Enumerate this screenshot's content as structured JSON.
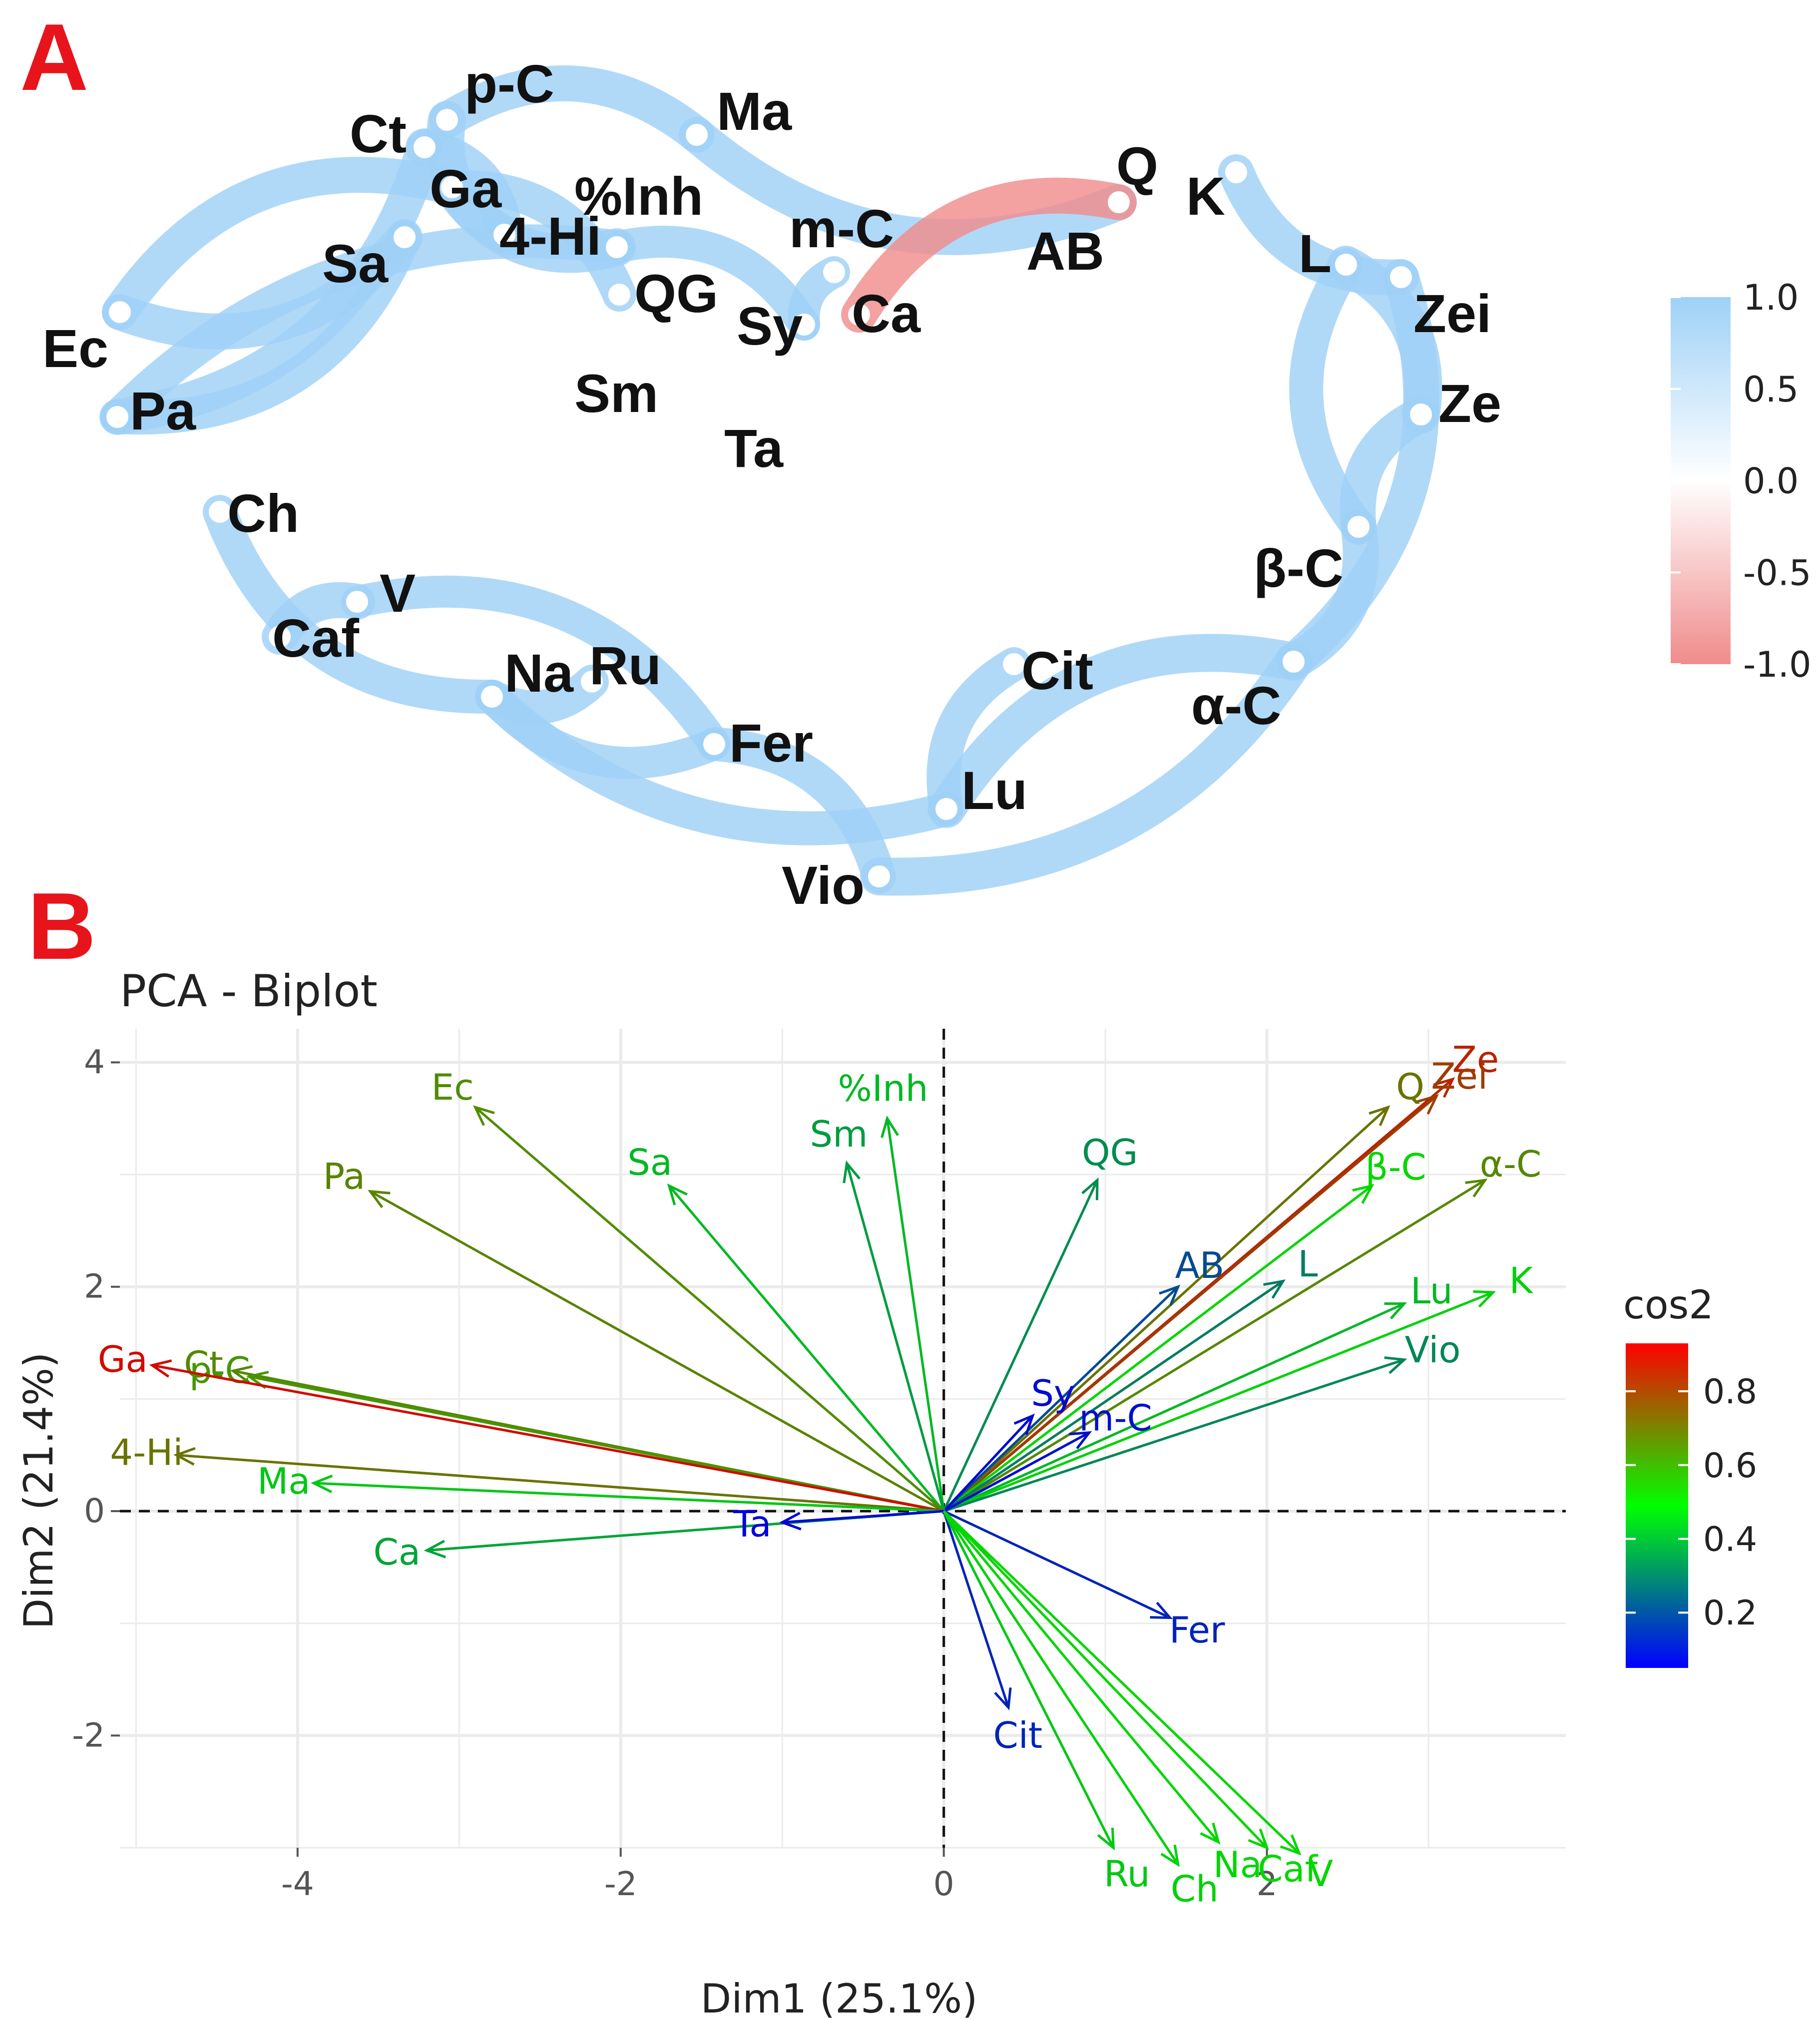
{
  "panels": {
    "a_letter": "A",
    "b_letter": "B"
  },
  "network": {
    "nodes": [
      {
        "id": "pC",
        "label": "p-C"
      },
      {
        "id": "Ct",
        "label": "Ct"
      },
      {
        "id": "Ga",
        "label": "Ga"
      },
      {
        "id": "Ma",
        "label": "Ma"
      },
      {
        "id": "Inh",
        "label": "%Inh"
      },
      {
        "id": "Hi",
        "label": "4-Hi"
      },
      {
        "id": "Sa",
        "label": "Sa"
      },
      {
        "id": "mC",
        "label": "m-C"
      },
      {
        "id": "Q",
        "label": "Q"
      },
      {
        "id": "K",
        "label": "K"
      },
      {
        "id": "AB",
        "label": "AB"
      },
      {
        "id": "L",
        "label": "L"
      },
      {
        "id": "Ec",
        "label": "Ec"
      },
      {
        "id": "QG",
        "label": "QG"
      },
      {
        "id": "Sy",
        "label": "Sy"
      },
      {
        "id": "Ca",
        "label": "Ca"
      },
      {
        "id": "Zei",
        "label": "Zei"
      },
      {
        "id": "Pa",
        "label": "Pa"
      },
      {
        "id": "Sm",
        "label": "Sm"
      },
      {
        "id": "Ze",
        "label": "Ze"
      },
      {
        "id": "Ta",
        "label": "Ta"
      },
      {
        "id": "Ch",
        "label": "Ch"
      },
      {
        "id": "bC",
        "label": "β-C"
      },
      {
        "id": "V",
        "label": "V"
      },
      {
        "id": "Caf",
        "label": "Caf"
      },
      {
        "id": "Na",
        "label": "Na"
      },
      {
        "id": "Ru",
        "label": "Ru"
      },
      {
        "id": "Cit",
        "label": "Cit"
      },
      {
        "id": "aC",
        "label": "α-C"
      },
      {
        "id": "Fer",
        "label": "Fer"
      },
      {
        "id": "Lu",
        "label": "Lu"
      },
      {
        "id": "Vio",
        "label": "Vio"
      }
    ],
    "edges": [
      {
        "from": "Ec",
        "to": "Sa",
        "r": 0.8
      },
      {
        "from": "Ec",
        "to": "Ga",
        "r": 0.8
      },
      {
        "from": "Pa",
        "to": "Ct",
        "r": 0.8
      },
      {
        "from": "Pa",
        "to": "Inh",
        "r": 0.7
      },
      {
        "from": "Pa",
        "to": "Sa",
        "r": 0.7
      },
      {
        "from": "Ct",
        "to": "Hi",
        "r": 0.9
      },
      {
        "from": "pC",
        "to": "Hi",
        "r": 0.9
      },
      {
        "from": "pC",
        "to": "Ma",
        "r": 0.8
      },
      {
        "from": "Ga",
        "to": "Inh",
        "r": 0.9
      },
      {
        "from": "Ga",
        "to": "QG",
        "r": 0.7
      },
      {
        "from": "Ma",
        "to": "Q",
        "r": 0.8
      },
      {
        "from": "Inh",
        "to": "Sy",
        "r": 0.6
      },
      {
        "from": "mC",
        "to": "Sy",
        "r": 0.6
      },
      {
        "from": "Ca",
        "to": "Q",
        "r": -0.8
      },
      {
        "from": "K",
        "to": "Zei",
        "r": 0.8
      },
      {
        "from": "L",
        "to": "Ze",
        "r": 0.9
      },
      {
        "from": "L",
        "to": "bC",
        "r": 0.7
      },
      {
        "from": "Zei",
        "to": "aC",
        "r": 0.8
      },
      {
        "from": "Ze",
        "to": "bC",
        "r": 0.8
      },
      {
        "from": "bC",
        "to": "aC",
        "r": 0.8
      },
      {
        "from": "aC",
        "to": "Lu",
        "r": 0.9
      },
      {
        "from": "aC",
        "to": "Vio",
        "r": 0.9
      },
      {
        "from": "Cit",
        "to": "Lu",
        "r": 0.7
      },
      {
        "from": "Fer",
        "to": "Vio",
        "r": 0.7
      },
      {
        "from": "Na",
        "to": "Fer",
        "r": 0.6
      },
      {
        "from": "V",
        "to": "Fer",
        "r": 0.6
      },
      {
        "from": "Ch",
        "to": "Na",
        "r": 0.7
      },
      {
        "from": "Caf",
        "to": "V",
        "r": 0.8
      },
      {
        "from": "Na",
        "to": "Lu",
        "r": 0.7
      },
      {
        "from": "Ru",
        "to": "Na",
        "r": 0.7
      }
    ],
    "legend": {
      "ticks": [
        "1.0",
        "0.5",
        "0.0",
        "-0.5",
        "-1.0"
      ],
      "colors": {
        "pos": "#9fd1f7",
        "mid": "#ffffff",
        "neg": "#f08c8c"
      }
    }
  },
  "chart_data": {
    "type": "scatter",
    "subtype": "pca-biplot",
    "title": "PCA - Biplot",
    "xlabel": "Dim1 (25.1%)",
    "ylabel": "Dim2 (21.4%)",
    "xlim": [
      -5.1,
      3.85
    ],
    "ylim": [
      -3.0,
      4.3
    ],
    "xticks": [
      -4,
      -2,
      0,
      2
    ],
    "yticks": [
      -2,
      0,
      2,
      4
    ],
    "grid": true,
    "legend": {
      "title": "cos2",
      "ticks": [
        "0.8",
        "0.6",
        "0.4",
        "0.2"
      ],
      "tick_values": [
        0.8,
        0.6,
        0.4,
        0.2
      ],
      "range": [
        0.05,
        0.93
      ],
      "gradient": [
        "#0000ff",
        "#00ff00",
        "#ff0000"
      ],
      "position": "right"
    },
    "vectors": [
      {
        "label": "Ze",
        "x": 3.15,
        "y": 3.85,
        "cos2": 0.86
      },
      {
        "label": "Zei",
        "x": 3.05,
        "y": 3.7,
        "cos2": 0.81
      },
      {
        "label": "Q",
        "x": 2.75,
        "y": 3.6,
        "cos2": 0.7
      },
      {
        "label": "β-C",
        "x": 2.65,
        "y": 2.9,
        "cos2": 0.5
      },
      {
        "label": "α-C",
        "x": 3.35,
        "y": 2.95,
        "cos2": 0.66
      },
      {
        "label": "L",
        "x": 2.1,
        "y": 2.05,
        "cos2": 0.3
      },
      {
        "label": "Lu",
        "x": 2.85,
        "y": 1.85,
        "cos2": 0.42
      },
      {
        "label": "K",
        "x": 3.4,
        "y": 1.95,
        "cos2": 0.47
      },
      {
        "label": "Vio",
        "x": 2.85,
        "y": 1.35,
        "cos2": 0.32
      },
      {
        "label": "AB",
        "x": 1.45,
        "y": 2.0,
        "cos2": 0.2
      },
      {
        "label": "QG",
        "x": 0.95,
        "y": 2.95,
        "cos2": 0.33
      },
      {
        "label": "Sy",
        "x": 0.55,
        "y": 0.85,
        "cos2": 0.07
      },
      {
        "label": "m-C",
        "x": 0.9,
        "y": 0.7,
        "cos2": 0.08
      },
      {
        "label": "%Inh",
        "x": -0.35,
        "y": 3.5,
        "cos2": 0.42
      },
      {
        "label": "Sm",
        "x": -0.6,
        "y": 3.1,
        "cos2": 0.36
      },
      {
        "label": "Sa",
        "x": -1.7,
        "y": 2.9,
        "cos2": 0.42
      },
      {
        "label": "Ec",
        "x": -2.9,
        "y": 3.6,
        "cos2": 0.65
      },
      {
        "label": "Pa",
        "x": -3.55,
        "y": 2.85,
        "cos2": 0.67
      },
      {
        "label": "Ct",
        "x": -4.4,
        "y": 1.25,
        "cos2": 0.66
      },
      {
        "label": "p-C",
        "x": -4.3,
        "y": 1.2,
        "cos2": 0.63
      },
      {
        "label": "Ga",
        "x": -4.9,
        "y": 1.3,
        "cos2": 0.91
      },
      {
        "label": "4-Hi",
        "x": -4.75,
        "y": 0.5,
        "cos2": 0.7
      },
      {
        "label": "Ma",
        "x": -3.9,
        "y": 0.25,
        "cos2": 0.45
      },
      {
        "label": "Ca",
        "x": -3.2,
        "y": -0.35,
        "cos2": 0.38
      },
      {
        "label": "Ta",
        "x": -1.0,
        "y": -0.1,
        "cos2": 0.05
      },
      {
        "label": "Fer",
        "x": 1.4,
        "y": -0.95,
        "cos2": 0.12
      },
      {
        "label": "Cit",
        "x": 0.4,
        "y": -1.75,
        "cos2": 0.12
      },
      {
        "label": "Ru",
        "x": 1.05,
        "y": -3.0,
        "cos2": 0.45
      },
      {
        "label": "Ch",
        "x": 1.45,
        "y": -3.15,
        "cos2": 0.47
      },
      {
        "label": "Caf",
        "x": 2.0,
        "y": -3.0,
        "cos2": 0.5
      },
      {
        "label": "Na",
        "x": 1.7,
        "y": -2.95,
        "cos2": 0.48
      },
      {
        "label": "V",
        "x": 2.2,
        "y": -3.05,
        "cos2": 0.5
      }
    ]
  }
}
